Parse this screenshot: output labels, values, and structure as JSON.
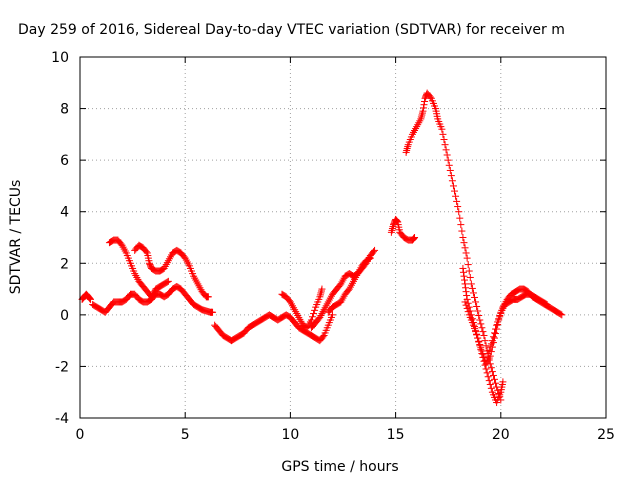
{
  "chart_data": {
    "type": "scatter",
    "title": "Day 259 of 2016, Sidereal Day-to-day VTEC variation (SDTVAR) for receiver m",
    "xlabel": "GPS time / hours",
    "ylabel": "SDTVAR / TECUs",
    "xlim": [
      0,
      25
    ],
    "ylim": [
      -4,
      10
    ],
    "x_ticks": [
      "0",
      "5",
      "10",
      "15",
      "20",
      "25"
    ],
    "y_ticks": [
      "-4",
      "-2",
      "0",
      "2",
      "4",
      "6",
      "8",
      "10"
    ],
    "grid": true,
    "legend": "none",
    "marker": "plus",
    "color": "#ff0000",
    "series": [
      {
        "points": [
          [
            0.1,
            0.6
          ],
          [
            0.2,
            0.7
          ],
          [
            0.3,
            0.8
          ],
          [
            0.4,
            0.7
          ],
          [
            0.5,
            0.6
          ]
        ]
      },
      {
        "points": [
          [
            0.6,
            0.4
          ],
          [
            0.8,
            0.3
          ],
          [
            1.0,
            0.2
          ],
          [
            1.2,
            0.1
          ],
          [
            1.4,
            0.3
          ],
          [
            1.6,
            0.5
          ],
          [
            1.8,
            0.5
          ],
          [
            2.0,
            0.5
          ],
          [
            2.2,
            0.6
          ],
          [
            2.4,
            0.8
          ],
          [
            2.6,
            0.8
          ],
          [
            2.8,
            0.6
          ],
          [
            3.0,
            0.5
          ],
          [
            3.2,
            0.5
          ],
          [
            3.4,
            0.6
          ],
          [
            3.6,
            0.8
          ],
          [
            3.8,
            0.8
          ],
          [
            4.0,
            0.7
          ],
          [
            4.2,
            0.8
          ],
          [
            4.4,
            1.0
          ],
          [
            4.6,
            1.1
          ],
          [
            4.8,
            1.0
          ],
          [
            5.0,
            0.8
          ],
          [
            5.2,
            0.6
          ],
          [
            5.4,
            0.4
          ],
          [
            5.6,
            0.3
          ],
          [
            5.8,
            0.2
          ],
          [
            6.0,
            0.15
          ],
          [
            6.2,
            0.1
          ],
          [
            6.3,
            0.1
          ]
        ]
      },
      {
        "points": [
          [
            1.4,
            2.8
          ],
          [
            1.6,
            2.9
          ],
          [
            1.8,
            2.9
          ],
          [
            2.0,
            2.7
          ],
          [
            2.2,
            2.4
          ],
          [
            2.4,
            2.0
          ],
          [
            2.6,
            1.6
          ],
          [
            2.8,
            1.3
          ],
          [
            3.0,
            1.1
          ],
          [
            3.2,
            0.9
          ],
          [
            3.4,
            0.7
          ],
          [
            3.5,
            0.8
          ],
          [
            3.6,
            1.0
          ],
          [
            3.8,
            1.1
          ],
          [
            4.0,
            1.2
          ],
          [
            4.2,
            1.3
          ]
        ]
      },
      {
        "points": [
          [
            2.6,
            2.5
          ],
          [
            2.8,
            2.7
          ],
          [
            3.0,
            2.6
          ],
          [
            3.2,
            2.4
          ],
          [
            3.3,
            2.0
          ],
          [
            3.4,
            1.8
          ],
          [
            3.6,
            1.7
          ],
          [
            3.8,
            1.7
          ],
          [
            4.0,
            1.8
          ],
          [
            4.2,
            2.1
          ],
          [
            4.4,
            2.4
          ],
          [
            4.6,
            2.5
          ],
          [
            4.8,
            2.4
          ],
          [
            5.0,
            2.2
          ],
          [
            5.2,
            1.9
          ],
          [
            5.4,
            1.5
          ],
          [
            5.6,
            1.2
          ],
          [
            5.8,
            0.9
          ],
          [
            6.0,
            0.7
          ],
          [
            6.1,
            0.7
          ]
        ]
      },
      {
        "points": [
          [
            6.4,
            -0.4
          ],
          [
            6.6,
            -0.6
          ],
          [
            6.8,
            -0.8
          ],
          [
            7.0,
            -0.9
          ],
          [
            7.2,
            -1.0
          ],
          [
            7.4,
            -0.9
          ],
          [
            7.6,
            -0.8
          ],
          [
            7.8,
            -0.7
          ],
          [
            8.0,
            -0.5
          ],
          [
            8.2,
            -0.4
          ],
          [
            8.4,
            -0.3
          ],
          [
            8.6,
            -0.2
          ],
          [
            8.8,
            -0.1
          ],
          [
            9.0,
            0.0
          ],
          [
            9.2,
            -0.1
          ],
          [
            9.4,
            -0.2
          ],
          [
            9.6,
            -0.1
          ],
          [
            9.8,
            0.0
          ],
          [
            10.0,
            -0.1
          ],
          [
            10.2,
            -0.3
          ],
          [
            10.4,
            -0.5
          ],
          [
            10.6,
            -0.6
          ],
          [
            10.8,
            -0.7
          ],
          [
            11.0,
            -0.8
          ],
          [
            11.2,
            -0.9
          ],
          [
            11.4,
            -1.0
          ],
          [
            11.6,
            -0.8
          ],
          [
            11.8,
            -0.4
          ],
          [
            12.0,
            0.0
          ]
        ]
      },
      {
        "points": [
          [
            9.6,
            0.8
          ],
          [
            9.8,
            0.7
          ],
          [
            10.0,
            0.5
          ],
          [
            10.2,
            0.2
          ],
          [
            10.4,
            -0.1
          ],
          [
            10.6,
            -0.4
          ],
          [
            10.8,
            -0.5
          ],
          [
            11.0,
            -0.2
          ],
          [
            11.2,
            0.3
          ],
          [
            11.4,
            0.7
          ],
          [
            11.5,
            1.0
          ]
        ]
      },
      {
        "points": [
          [
            11.0,
            -0.5
          ],
          [
            11.2,
            -0.3
          ],
          [
            11.4,
            -0.1
          ],
          [
            11.6,
            0.2
          ],
          [
            11.8,
            0.5
          ],
          [
            12.0,
            0.8
          ],
          [
            12.2,
            1.0
          ],
          [
            12.4,
            1.2
          ],
          [
            12.6,
            1.5
          ],
          [
            12.8,
            1.6
          ],
          [
            13.0,
            1.5
          ],
          [
            13.2,
            1.6
          ],
          [
            13.4,
            1.8
          ],
          [
            13.6,
            2.0
          ],
          [
            13.8,
            2.3
          ],
          [
            14.0,
            2.5
          ]
        ]
      },
      {
        "points": [
          [
            11.8,
            0.1
          ],
          [
            12.0,
            0.3
          ],
          [
            12.2,
            0.4
          ],
          [
            12.4,
            0.5
          ],
          [
            12.6,
            0.8
          ],
          [
            12.8,
            1.0
          ],
          [
            13.0,
            1.3
          ],
          [
            13.2,
            1.6
          ],
          [
            13.4,
            1.9
          ],
          [
            13.6,
            2.1
          ],
          [
            13.8,
            2.2
          ]
        ]
      },
      {
        "points": [
          [
            14.8,
            3.2
          ],
          [
            14.9,
            3.5
          ],
          [
            15.0,
            3.7
          ],
          [
            15.1,
            3.6
          ],
          [
            15.2,
            3.2
          ],
          [
            15.4,
            3.0
          ],
          [
            15.6,
            2.9
          ],
          [
            15.8,
            2.9
          ],
          [
            15.9,
            3.0
          ]
        ]
      },
      {
        "points": [
          [
            15.5,
            6.3
          ],
          [
            15.6,
            6.6
          ],
          [
            15.8,
            7.0
          ],
          [
            16.0,
            7.3
          ],
          [
            16.2,
            7.6
          ],
          [
            16.3,
            7.9
          ],
          [
            16.4,
            8.4
          ],
          [
            16.5,
            8.6
          ],
          [
            16.7,
            8.4
          ],
          [
            16.9,
            8.0
          ],
          [
            17.0,
            7.6
          ],
          [
            17.2,
            7.2
          ],
          [
            17.4,
            6.4
          ],
          [
            17.6,
            5.6
          ],
          [
            17.8,
            4.8
          ],
          [
            18.0,
            4.0
          ],
          [
            18.2,
            3.0
          ],
          [
            18.4,
            2.2
          ],
          [
            18.6,
            1.2
          ],
          [
            18.8,
            0.5
          ],
          [
            19.0,
            -0.2
          ],
          [
            19.2,
            -0.8
          ],
          [
            19.4,
            -1.6
          ],
          [
            19.6,
            -2.2
          ],
          [
            19.8,
            -2.8
          ],
          [
            20.0,
            -3.3
          ]
        ]
      },
      {
        "points": [
          [
            18.2,
            1.8
          ],
          [
            18.3,
            1.2
          ],
          [
            18.4,
            0.6
          ],
          [
            18.6,
            0.0
          ],
          [
            18.8,
            -0.6
          ],
          [
            19.0,
            -1.2
          ],
          [
            19.2,
            -1.8
          ],
          [
            19.4,
            -2.4
          ],
          [
            19.6,
            -3.0
          ],
          [
            19.8,
            -3.4
          ],
          [
            20.0,
            -3.0
          ],
          [
            20.1,
            -2.6
          ]
        ]
      },
      {
        "points": [
          [
            18.3,
            0.5
          ],
          [
            18.5,
            0.0
          ],
          [
            18.7,
            -0.4
          ],
          [
            18.9,
            -0.9
          ],
          [
            19.1,
            -1.4
          ],
          [
            19.3,
            -1.9
          ],
          [
            19.5,
            -1.6
          ],
          [
            19.7,
            -0.9
          ],
          [
            19.9,
            -0.2
          ],
          [
            20.1,
            0.3
          ],
          [
            20.3,
            0.6
          ],
          [
            20.5,
            0.8
          ],
          [
            20.7,
            0.9
          ],
          [
            20.9,
            1.0
          ],
          [
            21.1,
            1.0
          ],
          [
            21.3,
            0.9
          ],
          [
            21.5,
            0.7
          ],
          [
            21.7,
            0.6
          ],
          [
            21.9,
            0.5
          ],
          [
            22.1,
            0.4
          ],
          [
            22.3,
            0.3
          ],
          [
            22.5,
            0.2
          ],
          [
            22.7,
            0.1
          ],
          [
            22.9,
            0.0
          ]
        ]
      },
      {
        "points": [
          [
            19.4,
            -1.5
          ],
          [
            19.6,
            -1.0
          ],
          [
            19.8,
            -0.4
          ],
          [
            20.0,
            0.1
          ],
          [
            20.2,
            0.4
          ],
          [
            20.4,
            0.5
          ],
          [
            20.6,
            0.6
          ],
          [
            20.8,
            0.6
          ],
          [
            21.0,
            0.7
          ],
          [
            21.2,
            0.8
          ],
          [
            21.4,
            0.8
          ],
          [
            21.6,
            0.7
          ],
          [
            21.8,
            0.6
          ],
          [
            22.0,
            0.5
          ],
          [
            22.2,
            0.4
          ]
        ]
      }
    ]
  }
}
